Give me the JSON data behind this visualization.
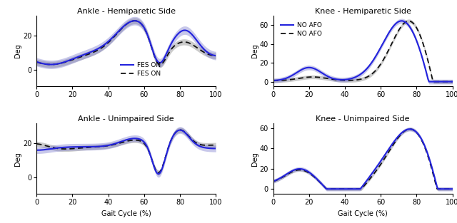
{
  "titles": [
    "Ankle - Hemiparetic Side",
    "Knee - Hemiparetic Side",
    "Ankle - Unimpaired Side",
    "Knee - Unimpaired Side"
  ],
  "legend_labels_left": [
    "FES ON",
    "FES ON"
  ],
  "legend_labels_right": [
    "NO AFO",
    "NO AFO"
  ],
  "blue_color": "#2222dd",
  "blue_fill_color": "#7777cc",
  "gray_fill_color": "#999999",
  "black_color": "#111111",
  "ylabel": "Deg",
  "xlabel": "Gait Cycle (%)",
  "xlim": [
    0,
    100
  ],
  "xticks": [
    0,
    20,
    40,
    60,
    80,
    100
  ],
  "ankle_hemi_ylim": [
    -10,
    32
  ],
  "ankle_hemi_yticks": [
    0,
    20
  ],
  "knee_hemi_ylim": [
    -5,
    70
  ],
  "knee_hemi_yticks": [
    0,
    20,
    40,
    60
  ],
  "ankle_unimp_ylim": [
    -10,
    32
  ],
  "ankle_unimp_yticks": [
    0,
    20
  ],
  "knee_unimp_ylim": [
    -5,
    65
  ],
  "knee_unimp_yticks": [
    0,
    20,
    40,
    60
  ]
}
